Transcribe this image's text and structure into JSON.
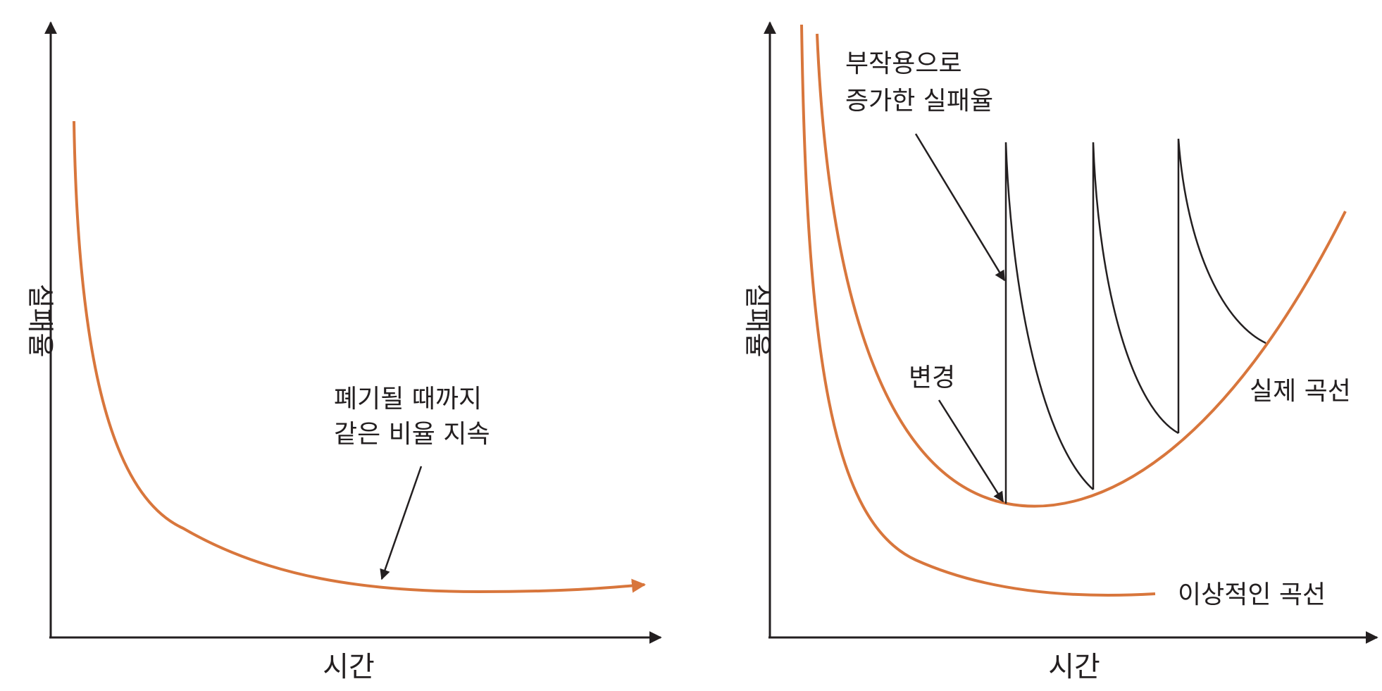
{
  "left_panel": {
    "y_axis_label": "실패율",
    "x_axis_label": "시간",
    "annotation_line1": "폐기될 때까지",
    "annotation_line2": "같은 비율 지속"
  },
  "right_panel": {
    "y_axis_label": "실패율",
    "x_axis_label": "시간",
    "side_effect_line1": "부작용으로",
    "side_effect_line2": "증가한 실패율",
    "change_label": "변경",
    "actual_curve_label": "실제 곡선",
    "ideal_curve_label": "이상적인 곡선"
  },
  "colors": {
    "curve": "#d8763c",
    "ink": "#231f20"
  }
}
